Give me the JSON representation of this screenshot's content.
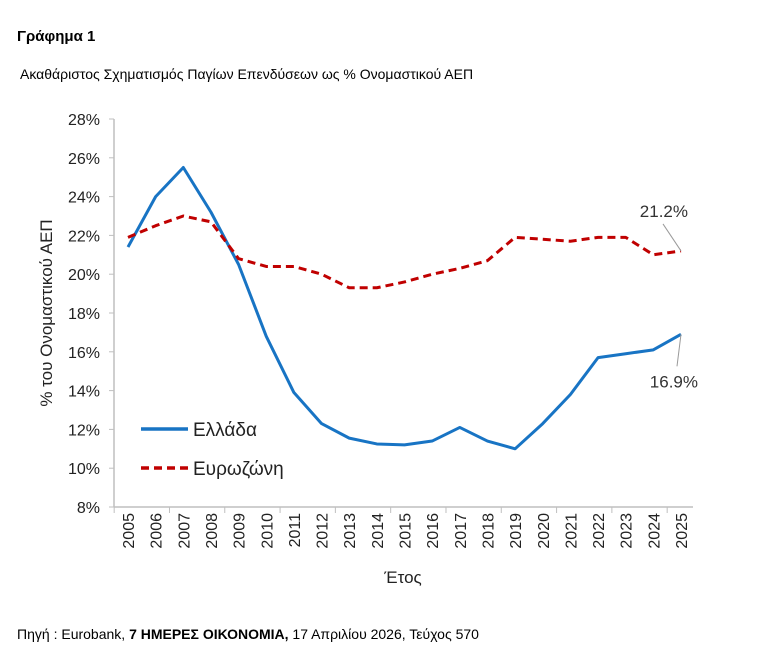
{
  "figure_label": "Γράφημα 1",
  "source": {
    "prefix": "Πηγή : Eurobank,  ",
    "bold": "7 ΗΜΕΡΕΣ ΟΙΚΟΝΟΜΙΑ,",
    "suffix": " 17 Απριλίου 2026, Τεύχος 570"
  },
  "chart_data": {
    "type": "line",
    "title": "Ακαθάριστος Σχηματισμός Παγίων Επενδύσεων ως % Ονομαστικού ΑΕΠ",
    "xlabel": "Έτος",
    "ylabel": "% του Ονομαστικού ΑΕΠ",
    "ylim": [
      8,
      28
    ],
    "yticks": [
      "8%",
      "10%",
      "12%",
      "14%",
      "16%",
      "18%",
      "20%",
      "22%",
      "24%",
      "26%",
      "28%"
    ],
    "categories": [
      "2005",
      "2006",
      "2007",
      "2008",
      "2009",
      "2010",
      "2011",
      "2012",
      "2013",
      "2014",
      "2015",
      "2016",
      "2017",
      "2018",
      "2019",
      "2020",
      "2021",
      "2022",
      "2023",
      "2024",
      "2025"
    ],
    "legend": "bottom-left-inside",
    "series": [
      {
        "name": "Ελλάδα",
        "color": "#1874c4",
        "dash": false,
        "values": [
          21.4,
          24.0,
          25.5,
          23.2,
          20.5,
          16.8,
          13.9,
          12.3,
          11.55,
          11.25,
          11.2,
          11.4,
          12.1,
          11.4,
          11.0,
          12.3,
          13.8,
          15.7,
          15.9,
          16.1,
          16.9
        ],
        "end_label": "16.9%"
      },
      {
        "name": "Ευρωζώνη",
        "color": "#c00000",
        "dash": true,
        "values": [
          21.9,
          22.5,
          23.0,
          22.7,
          20.8,
          20.4,
          20.4,
          20.0,
          19.3,
          19.3,
          19.6,
          20.0,
          20.3,
          20.7,
          21.9,
          21.8,
          21.7,
          21.9,
          21.9,
          21.0,
          21.2
        ],
        "end_label": "21.2%"
      }
    ]
  }
}
